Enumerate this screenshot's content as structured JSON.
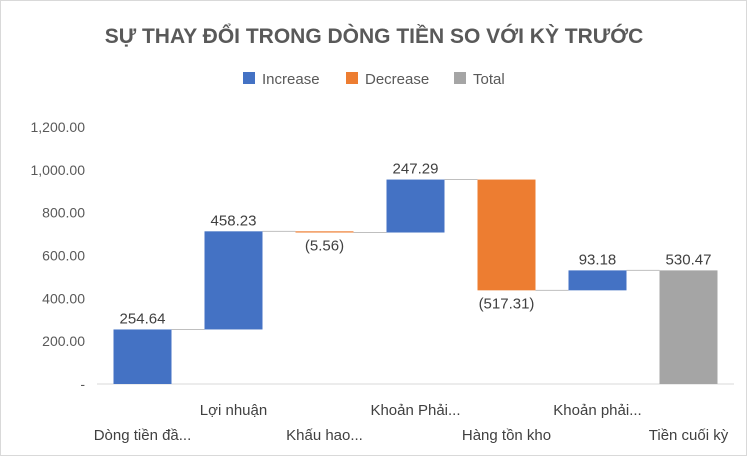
{
  "chart_data": {
    "type": "waterfall",
    "title": "SỰ THAY ĐỔI TRONG DÒNG TIỀN SO VỚI KỲ TRƯỚC",
    "legend": [
      {
        "name": "Increase",
        "color": "#4472C4"
      },
      {
        "name": "Decrease",
        "color": "#ED7D31"
      },
      {
        "name": "Total",
        "color": "#A5A5A5"
      }
    ],
    "legend_position": "top",
    "categories": [
      "Dòng tiền đầ...",
      "Lợi nhuận",
      "Khấu hao...",
      "Khoản Phải...",
      "Hàng tồn kho",
      "Khoản phải...",
      "Tiền cuối kỳ"
    ],
    "values": [
      254.64,
      458.23,
      -5.56,
      247.29,
      -517.31,
      93.18,
      530.47
    ],
    "kinds": [
      "increase",
      "increase",
      "decrease",
      "increase",
      "decrease",
      "increase",
      "total"
    ],
    "data_labels": [
      "254.64",
      "458.23",
      "(5.56)",
      "247.29",
      "(517.31)",
      "93.18",
      "530.47"
    ],
    "ylim": [
      0,
      1200
    ],
    "yticks": [
      0,
      200,
      400,
      600,
      800,
      1000,
      1200
    ],
    "ytick_labels": [
      "-",
      "200.00",
      "400.00",
      "600.00",
      "800.00",
      "1,000.00",
      "1,200.00"
    ],
    "grid": false,
    "xlabel": "",
    "ylabel": ""
  }
}
